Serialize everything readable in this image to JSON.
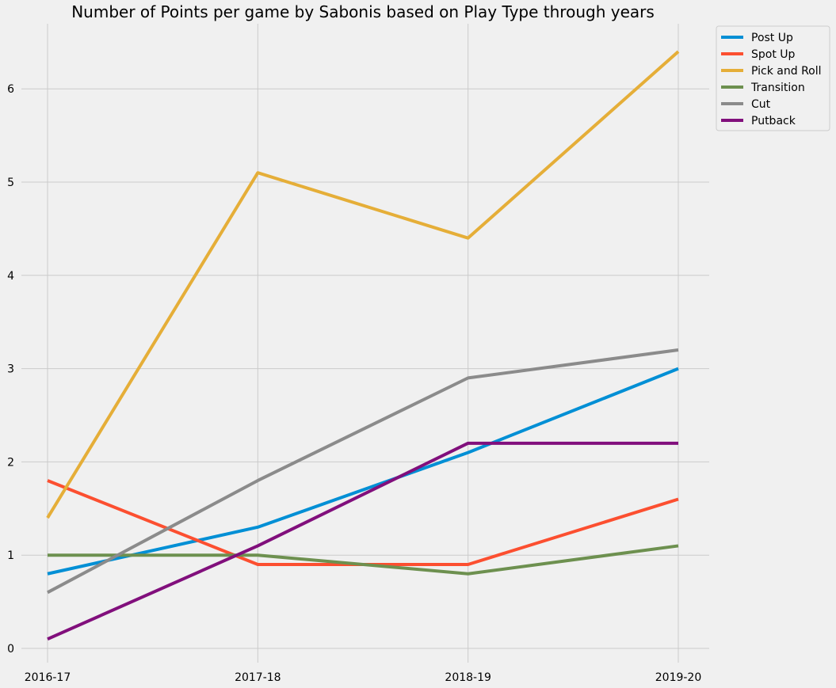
{
  "chart_data": {
    "type": "line",
    "title": "Number of Points per game by Sabonis based on Play Type through years",
    "xlabel": "",
    "ylabel": "",
    "categories": [
      "2016-17",
      "2017-18",
      "2018-19",
      "2019-20"
    ],
    "yticks": [
      "0",
      "1",
      "2",
      "3",
      "4",
      "5",
      "6"
    ],
    "ylim": [
      -0.15,
      6.75
    ],
    "grid": true,
    "legend_position": "upper right, outside plot",
    "series": [
      {
        "name": "Post Up",
        "color": "#008fd5",
        "values": [
          0.8,
          1.3,
          2.1,
          3.0
        ]
      },
      {
        "name": "Spot Up",
        "color": "#fc4f30",
        "values": [
          1.8,
          0.9,
          0.9,
          1.6
        ]
      },
      {
        "name": "Pick and Roll",
        "color": "#e5ae38",
        "values": [
          1.4,
          5.1,
          4.4,
          6.4
        ]
      },
      {
        "name": "Transition",
        "color": "#6d904f",
        "values": [
          1.0,
          1.0,
          0.8,
          1.1
        ]
      },
      {
        "name": "Cut",
        "color": "#8b8b8b",
        "values": [
          0.6,
          1.8,
          2.9,
          3.2
        ]
      },
      {
        "name": "Putback",
        "color": "#810f7c",
        "values": [
          0.1,
          1.1,
          2.2,
          2.2
        ]
      }
    ]
  }
}
